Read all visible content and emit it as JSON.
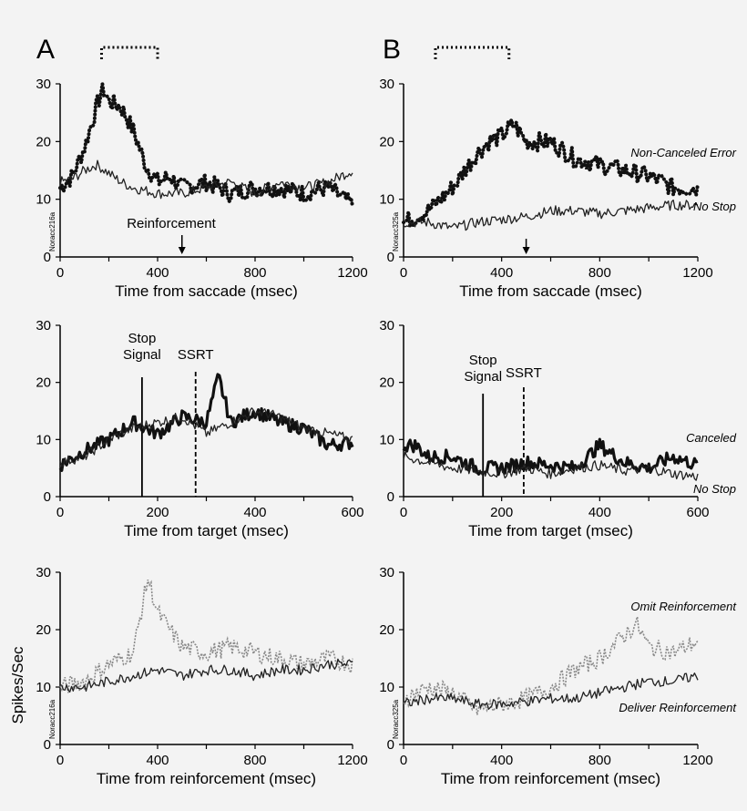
{
  "figure": {
    "ylabel_shared": "Spikes/Sec"
  },
  "chart_data": [
    {
      "id": "a1",
      "type": "line",
      "panel_letter": "A",
      "unit_label": "Noracc216a",
      "xlabel": "Time from saccade (msec)",
      "xlim": [
        0,
        1200
      ],
      "ylim": [
        0,
        30
      ],
      "xticks": [
        0,
        400,
        800,
        1200
      ],
      "yticks": [
        0,
        10,
        20,
        30
      ],
      "bracket": [
        170,
        400
      ],
      "annotation": {
        "text": "Reinforcement",
        "x": 500
      },
      "series": [
        {
          "name": "Non-Canceled Error",
          "style": "dotted-thick",
          "x": [
            0,
            50,
            100,
            150,
            175,
            200,
            250,
            300,
            350,
            400,
            450,
            500,
            600,
            700,
            800,
            900,
            1000,
            1100,
            1200
          ],
          "y": [
            12,
            14,
            19,
            26,
            29.5,
            27,
            26,
            22,
            16,
            13,
            14,
            12,
            13,
            11,
            12,
            12,
            11,
            12,
            9
          ]
        },
        {
          "name": "No Stop",
          "style": "thin",
          "x": [
            0,
            50,
            100,
            150,
            200,
            250,
            300,
            400,
            500,
            600,
            700,
            800,
            900,
            1000,
            1100,
            1200
          ],
          "y": [
            13,
            13.5,
            15,
            16,
            14.5,
            13,
            12,
            11,
            11,
            12,
            13,
            11,
            13,
            12,
            13,
            15
          ]
        }
      ]
    },
    {
      "id": "b1",
      "type": "line",
      "panel_letter": "B",
      "unit_label": "Noracc325a",
      "xlabel": "Time from saccade (msec)",
      "xlim": [
        0,
        1200
      ],
      "ylim": [
        0,
        30
      ],
      "xticks": [
        0,
        400,
        800,
        1200
      ],
      "yticks": [
        0,
        10,
        20,
        30
      ],
      "bracket": [
        130,
        430
      ],
      "arrow_x": 500,
      "series": [
        {
          "name": "Non-Canceled Error",
          "style": "dotted-thick",
          "x": [
            0,
            100,
            200,
            300,
            350,
            400,
            450,
            500,
            600,
            700,
            800,
            900,
            1000,
            1100,
            1200
          ],
          "y": [
            6,
            8,
            12,
            18,
            20,
            21,
            23,
            20,
            20,
            17,
            16,
            15,
            14,
            12,
            12
          ]
        },
        {
          "name": "No Stop",
          "style": "thin",
          "x": [
            0,
            100,
            200,
            300,
            400,
            500,
            600,
            700,
            800,
            900,
            1000,
            1100,
            1200
          ],
          "y": [
            6,
            6,
            5,
            6,
            6.5,
            7,
            8,
            8,
            7.5,
            8,
            8.5,
            9,
            9
          ]
        }
      ]
    },
    {
      "id": "a2",
      "type": "line",
      "xlabel": "Time from target (msec)",
      "xlim": [
        0,
        600
      ],
      "ylim": [
        0,
        30
      ],
      "xticks": [
        0,
        200,
        400,
        600
      ],
      "yticks": [
        0,
        10,
        20,
        30
      ],
      "stop_signal": {
        "label1": "Stop",
        "label2": "Signal",
        "x": 168
      },
      "ssrt": {
        "label": "SSRT",
        "x": 278
      },
      "series": [
        {
          "name": "Canceled",
          "style": "thick",
          "x": [
            0,
            50,
            100,
            150,
            175,
            200,
            250,
            300,
            325,
            350,
            400,
            450,
            500,
            550,
            600
          ],
          "y": [
            5.5,
            8,
            10,
            13,
            12,
            11,
            14,
            13,
            21,
            13,
            15,
            13,
            12,
            9,
            9.5
          ]
        },
        {
          "name": "No Stop",
          "style": "thin",
          "x": [
            0,
            50,
            100,
            150,
            200,
            250,
            300,
            350,
            400,
            450,
            500,
            550,
            600
          ],
          "y": [
            6,
            7,
            10,
            12,
            13,
            14,
            11,
            13,
            15,
            14,
            12,
            11,
            10
          ]
        }
      ]
    },
    {
      "id": "b2",
      "type": "line",
      "xlabel": "Time from target (msec)",
      "xlim": [
        0,
        600
      ],
      "ylim": [
        0,
        30
      ],
      "xticks": [
        0,
        200,
        400,
        600
      ],
      "yticks": [
        0,
        10,
        20,
        30
      ],
      "stop_signal": {
        "label1": "Stop",
        "label2": "Signal",
        "x": 162
      },
      "ssrt": {
        "label": "SSRT",
        "x": 245
      },
      "series": [
        {
          "name": "Canceled",
          "style": "thick",
          "x": [
            0,
            25,
            50,
            100,
            150,
            200,
            250,
            300,
            350,
            400,
            450,
            500,
            550,
            600
          ],
          "y": [
            9,
            9,
            7,
            7,
            5,
            5,
            6,
            5.5,
            5,
            9,
            6,
            5,
            7,
            5.5
          ]
        },
        {
          "name": "No Stop",
          "style": "thin",
          "x": [
            0,
            50,
            100,
            150,
            200,
            250,
            300,
            350,
            400,
            450,
            500,
            550,
            600
          ],
          "y": [
            7,
            6,
            5,
            4.5,
            4,
            5,
            4,
            5,
            5.5,
            4.5,
            5,
            4,
            3.5
          ]
        }
      ]
    },
    {
      "id": "a3",
      "type": "line",
      "unit_label": "Noracc216a",
      "xlabel": "Time from reinforcement (msec)",
      "xlim": [
        0,
        1200
      ],
      "ylim": [
        0,
        30
      ],
      "xticks": [
        0,
        400,
        800,
        1200
      ],
      "yticks": [
        0,
        10,
        20,
        30
      ],
      "series": [
        {
          "name": "Omit Reinforcement",
          "style": "dotted-gray",
          "x": [
            0,
            100,
            200,
            300,
            360,
            400,
            500,
            600,
            700,
            800,
            900,
            1000,
            1100,
            1200
          ],
          "y": [
            10,
            11,
            14,
            16,
            29,
            23,
            17,
            16,
            17,
            16,
            15,
            14,
            15,
            14
          ]
        },
        {
          "name": "Deliver Reinforcement",
          "style": "thin",
          "x": [
            0,
            100,
            200,
            300,
            400,
            500,
            600,
            700,
            800,
            900,
            1000,
            1100,
            1200
          ],
          "y": [
            10,
            10,
            11,
            12,
            13,
            12,
            13,
            13,
            12,
            13,
            13,
            14,
            14
          ]
        }
      ]
    },
    {
      "id": "b3",
      "type": "line",
      "unit_label": "Noracc325a",
      "xlabel": "Time from reinforcement (msec)",
      "xlim": [
        0,
        1200
      ],
      "ylim": [
        0,
        30
      ],
      "xticks": [
        0,
        400,
        800,
        1200
      ],
      "yticks": [
        0,
        10,
        20,
        30
      ],
      "series": [
        {
          "name": "Omit Reinforcement",
          "style": "dotted-gray",
          "x": [
            0,
            100,
            200,
            300,
            400,
            500,
            600,
            700,
            800,
            900,
            950,
            1000,
            1100,
            1200
          ],
          "y": [
            8,
            10,
            9,
            6,
            7,
            8,
            10,
            13,
            15,
            19,
            21,
            17,
            16,
            18
          ]
        },
        {
          "name": "Deliver Reinforcement",
          "style": "thin",
          "x": [
            0,
            100,
            200,
            300,
            400,
            500,
            600,
            700,
            800,
            900,
            1000,
            1100,
            1200
          ],
          "y": [
            7,
            8,
            8,
            7,
            7,
            7.5,
            8,
            8,
            9,
            10,
            11,
            11,
            12
          ]
        }
      ]
    }
  ]
}
